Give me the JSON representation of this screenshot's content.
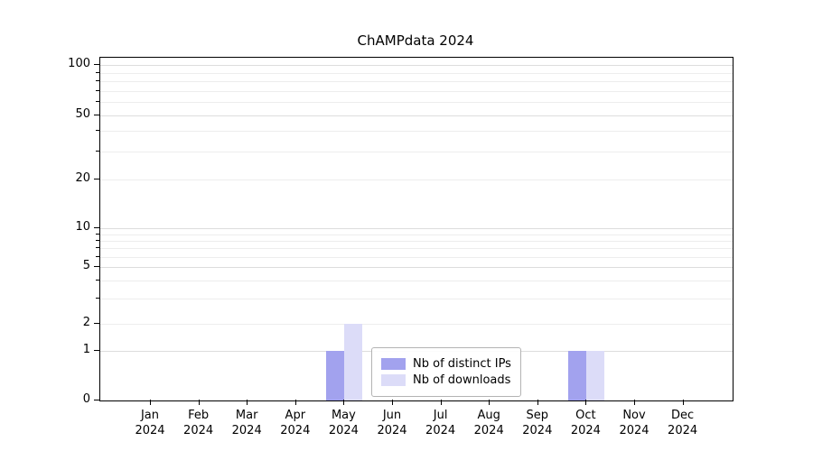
{
  "chart_data": {
    "type": "bar",
    "title": "ChAMPdata 2024",
    "categories": [
      "Jan 2024",
      "Feb 2024",
      "Mar 2024",
      "Apr 2024",
      "May 2024",
      "Jun 2024",
      "Jul 2024",
      "Aug 2024",
      "Sep 2024",
      "Oct 2024",
      "Nov 2024",
      "Dec 2024"
    ],
    "series": [
      {
        "name": "Nb of distinct IPs",
        "color": "#a2a2ee",
        "values": [
          0,
          0,
          0,
          0,
          1,
          0,
          0,
          0,
          0,
          1,
          0,
          0
        ]
      },
      {
        "name": "Nb of downloads",
        "color": "#dcdcf8",
        "values": [
          0,
          0,
          0,
          0,
          2,
          0,
          0,
          0,
          0,
          1,
          0,
          0
        ]
      }
    ],
    "yscale": "symlog",
    "yticks": [
      0,
      1,
      2,
      5,
      10,
      20,
      50,
      100
    ],
    "ylim": [
      0,
      110
    ],
    "xlabel": "",
    "ylabel": "",
    "grid": true,
    "legend_position": "lower center (inside plot)"
  }
}
